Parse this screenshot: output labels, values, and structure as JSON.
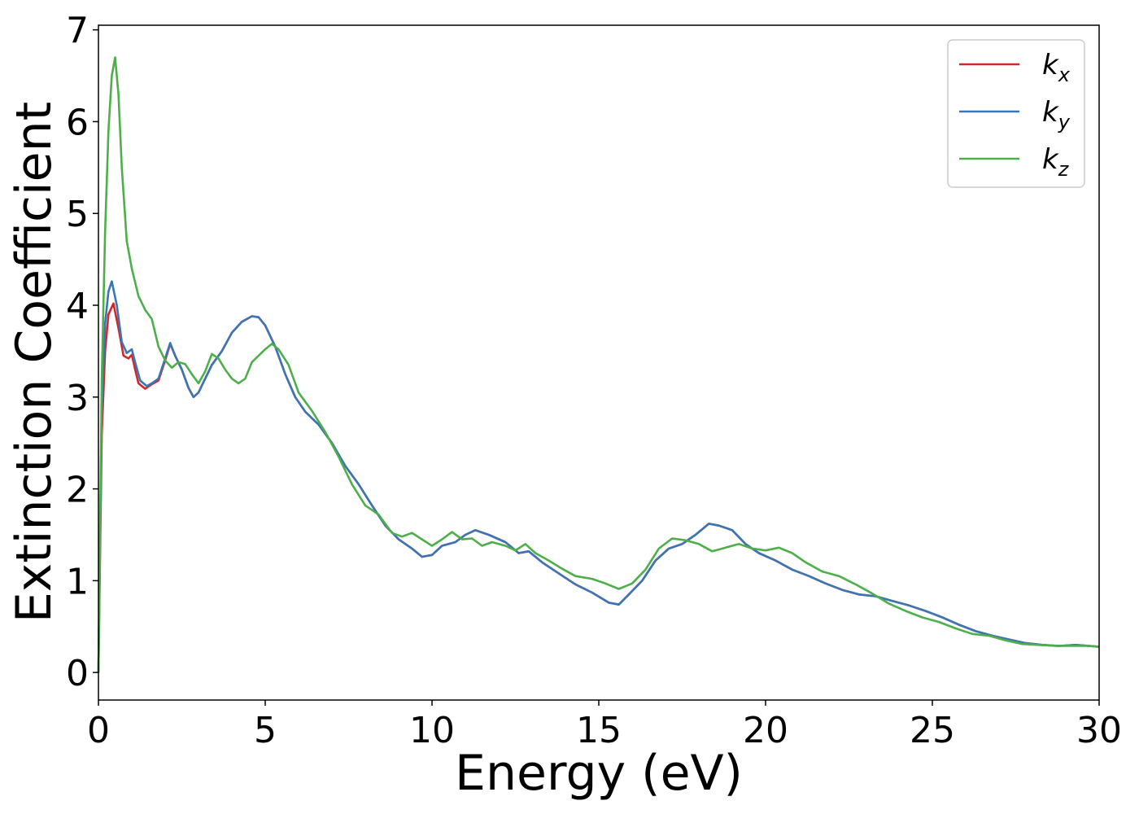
{
  "chart_data": {
    "type": "line",
    "xlabel": "Energy (eV)",
    "ylabel": "Extinction Coefficient",
    "xlim": [
      0,
      30
    ],
    "ylim": [
      -0.3,
      7.05
    ],
    "xticks": [
      0,
      5,
      10,
      15,
      20,
      25,
      30
    ],
    "yticks": [
      0,
      1,
      2,
      3,
      4,
      5,
      6,
      7
    ],
    "grid": false,
    "legend_position": "top-right",
    "series": [
      {
        "name": "kx",
        "legend_main": "k",
        "legend_sub": "x",
        "color": "#d62728",
        "points": [
          [
            0,
            0
          ],
          [
            0.1,
            2.6
          ],
          [
            0.2,
            3.5
          ],
          [
            0.3,
            3.9
          ],
          [
            0.45,
            4.02
          ],
          [
            0.6,
            3.75
          ],
          [
            0.75,
            3.45
          ],
          [
            0.9,
            3.42
          ],
          [
            1.0,
            3.46
          ],
          [
            1.1,
            3.3
          ],
          [
            1.2,
            3.15
          ],
          [
            1.4,
            3.09
          ],
          [
            1.6,
            3.14
          ],
          [
            1.8,
            3.18
          ],
          [
            2.0,
            3.4
          ],
          [
            2.15,
            3.58
          ],
          [
            2.3,
            3.45
          ],
          [
            2.5,
            3.3
          ],
          [
            2.7,
            3.1
          ],
          [
            2.85,
            3.0
          ],
          [
            3.0,
            3.05
          ],
          [
            3.2,
            3.2
          ],
          [
            3.4,
            3.35
          ],
          [
            3.7,
            3.5
          ],
          [
            4.0,
            3.7
          ],
          [
            4.3,
            3.82
          ],
          [
            4.6,
            3.88
          ],
          [
            4.8,
            3.87
          ],
          [
            5.0,
            3.78
          ],
          [
            5.3,
            3.55
          ],
          [
            5.6,
            3.25
          ],
          [
            5.9,
            3.0
          ],
          [
            6.2,
            2.84
          ],
          [
            6.6,
            2.7
          ],
          [
            7.0,
            2.5
          ],
          [
            7.4,
            2.25
          ],
          [
            7.8,
            2.05
          ],
          [
            8.2,
            1.82
          ],
          [
            8.6,
            1.6
          ],
          [
            9.0,
            1.45
          ],
          [
            9.4,
            1.35
          ],
          [
            9.7,
            1.26
          ],
          [
            10.0,
            1.28
          ],
          [
            10.3,
            1.38
          ],
          [
            10.7,
            1.42
          ],
          [
            11.0,
            1.5
          ],
          [
            11.3,
            1.55
          ],
          [
            11.7,
            1.5
          ],
          [
            12.2,
            1.42
          ],
          [
            12.6,
            1.3
          ],
          [
            12.9,
            1.32
          ],
          [
            13.3,
            1.2
          ],
          [
            13.8,
            1.08
          ],
          [
            14.3,
            0.96
          ],
          [
            14.8,
            0.87
          ],
          [
            15.3,
            0.76
          ],
          [
            15.6,
            0.74
          ],
          [
            15.9,
            0.85
          ],
          [
            16.3,
            1.0
          ],
          [
            16.7,
            1.22
          ],
          [
            17.1,
            1.35
          ],
          [
            17.5,
            1.4
          ],
          [
            17.9,
            1.5
          ],
          [
            18.3,
            1.62
          ],
          [
            18.6,
            1.6
          ],
          [
            19.0,
            1.55
          ],
          [
            19.4,
            1.4
          ],
          [
            19.8,
            1.3
          ],
          [
            20.3,
            1.22
          ],
          [
            20.8,
            1.12
          ],
          [
            21.3,
            1.05
          ],
          [
            21.8,
            0.97
          ],
          [
            22.3,
            0.9
          ],
          [
            22.8,
            0.85
          ],
          [
            23.3,
            0.83
          ],
          [
            23.8,
            0.78
          ],
          [
            24.3,
            0.73
          ],
          [
            24.8,
            0.67
          ],
          [
            25.3,
            0.6
          ],
          [
            25.8,
            0.52
          ],
          [
            26.3,
            0.45
          ],
          [
            26.8,
            0.4
          ],
          [
            27.3,
            0.36
          ],
          [
            27.8,
            0.32
          ],
          [
            28.3,
            0.3
          ],
          [
            28.8,
            0.29
          ],
          [
            29.3,
            0.3
          ],
          [
            29.7,
            0.29
          ],
          [
            30.0,
            0.28
          ]
        ]
      },
      {
        "name": "ky",
        "legend_main": "k",
        "legend_sub": "y",
        "color": "#3a76b5",
        "points": [
          [
            0,
            0
          ],
          [
            0.1,
            2.9
          ],
          [
            0.2,
            3.8
          ],
          [
            0.3,
            4.15
          ],
          [
            0.4,
            4.26
          ],
          [
            0.55,
            4.0
          ],
          [
            0.7,
            3.6
          ],
          [
            0.85,
            3.48
          ],
          [
            1.0,
            3.52
          ],
          [
            1.1,
            3.38
          ],
          [
            1.25,
            3.18
          ],
          [
            1.45,
            3.12
          ],
          [
            1.6,
            3.15
          ],
          [
            1.8,
            3.2
          ],
          [
            2.0,
            3.42
          ],
          [
            2.15,
            3.59
          ],
          [
            2.3,
            3.45
          ],
          [
            2.5,
            3.3
          ],
          [
            2.7,
            3.1
          ],
          [
            2.85,
            3.0
          ],
          [
            3.0,
            3.05
          ],
          [
            3.2,
            3.2
          ],
          [
            3.4,
            3.35
          ],
          [
            3.7,
            3.5
          ],
          [
            4.0,
            3.7
          ],
          [
            4.3,
            3.82
          ],
          [
            4.6,
            3.88
          ],
          [
            4.8,
            3.87
          ],
          [
            5.0,
            3.78
          ],
          [
            5.3,
            3.55
          ],
          [
            5.6,
            3.25
          ],
          [
            5.9,
            3.0
          ],
          [
            6.2,
            2.84
          ],
          [
            6.6,
            2.7
          ],
          [
            7.0,
            2.5
          ],
          [
            7.4,
            2.25
          ],
          [
            7.8,
            2.05
          ],
          [
            8.2,
            1.82
          ],
          [
            8.6,
            1.6
          ],
          [
            9.0,
            1.45
          ],
          [
            9.4,
            1.35
          ],
          [
            9.7,
            1.26
          ],
          [
            10.0,
            1.28
          ],
          [
            10.3,
            1.38
          ],
          [
            10.7,
            1.42
          ],
          [
            11.0,
            1.5
          ],
          [
            11.3,
            1.55
          ],
          [
            11.7,
            1.5
          ],
          [
            12.2,
            1.42
          ],
          [
            12.6,
            1.3
          ],
          [
            12.9,
            1.32
          ],
          [
            13.3,
            1.2
          ],
          [
            13.8,
            1.08
          ],
          [
            14.3,
            0.96
          ],
          [
            14.8,
            0.87
          ],
          [
            15.3,
            0.76
          ],
          [
            15.6,
            0.74
          ],
          [
            15.9,
            0.85
          ],
          [
            16.3,
            1.0
          ],
          [
            16.7,
            1.22
          ],
          [
            17.1,
            1.35
          ],
          [
            17.5,
            1.4
          ],
          [
            17.9,
            1.5
          ],
          [
            18.3,
            1.62
          ],
          [
            18.6,
            1.6
          ],
          [
            19.0,
            1.55
          ],
          [
            19.4,
            1.4
          ],
          [
            19.8,
            1.3
          ],
          [
            20.3,
            1.22
          ],
          [
            20.8,
            1.12
          ],
          [
            21.3,
            1.05
          ],
          [
            21.8,
            0.97
          ],
          [
            22.3,
            0.9
          ],
          [
            22.8,
            0.85
          ],
          [
            23.3,
            0.83
          ],
          [
            23.8,
            0.78
          ],
          [
            24.3,
            0.73
          ],
          [
            24.8,
            0.67
          ],
          [
            25.3,
            0.6
          ],
          [
            25.8,
            0.52
          ],
          [
            26.3,
            0.45
          ],
          [
            26.8,
            0.4
          ],
          [
            27.3,
            0.36
          ],
          [
            27.8,
            0.32
          ],
          [
            28.3,
            0.3
          ],
          [
            28.8,
            0.29
          ],
          [
            29.3,
            0.3
          ],
          [
            29.7,
            0.29
          ],
          [
            30.0,
            0.28
          ]
        ]
      },
      {
        "name": "kz",
        "legend_main": "k",
        "legend_sub": "z",
        "color": "#4daf4a",
        "points": [
          [
            0,
            0
          ],
          [
            0.1,
            3.2
          ],
          [
            0.2,
            4.8
          ],
          [
            0.3,
            5.9
          ],
          [
            0.4,
            6.5
          ],
          [
            0.5,
            6.7
          ],
          [
            0.6,
            6.3
          ],
          [
            0.7,
            5.5
          ],
          [
            0.85,
            4.7
          ],
          [
            1.0,
            4.4
          ],
          [
            1.2,
            4.1
          ],
          [
            1.4,
            3.95
          ],
          [
            1.6,
            3.85
          ],
          [
            1.8,
            3.55
          ],
          [
            2.0,
            3.4
          ],
          [
            2.2,
            3.32
          ],
          [
            2.4,
            3.38
          ],
          [
            2.6,
            3.36
          ],
          [
            2.8,
            3.25
          ],
          [
            3.0,
            3.15
          ],
          [
            3.2,
            3.28
          ],
          [
            3.4,
            3.47
          ],
          [
            3.6,
            3.42
          ],
          [
            3.8,
            3.3
          ],
          [
            4.0,
            3.2
          ],
          [
            4.2,
            3.15
          ],
          [
            4.4,
            3.2
          ],
          [
            4.6,
            3.38
          ],
          [
            4.8,
            3.45
          ],
          [
            5.0,
            3.52
          ],
          [
            5.2,
            3.58
          ],
          [
            5.4,
            3.52
          ],
          [
            5.7,
            3.35
          ],
          [
            6.0,
            3.05
          ],
          [
            6.4,
            2.85
          ],
          [
            6.8,
            2.62
          ],
          [
            7.2,
            2.35
          ],
          [
            7.6,
            2.05
          ],
          [
            8.0,
            1.82
          ],
          [
            8.4,
            1.72
          ],
          [
            8.8,
            1.52
          ],
          [
            9.1,
            1.48
          ],
          [
            9.4,
            1.52
          ],
          [
            9.7,
            1.45
          ],
          [
            10.0,
            1.38
          ],
          [
            10.3,
            1.45
          ],
          [
            10.6,
            1.53
          ],
          [
            10.9,
            1.45
          ],
          [
            11.2,
            1.46
          ],
          [
            11.5,
            1.38
          ],
          [
            11.8,
            1.42
          ],
          [
            12.2,
            1.38
          ],
          [
            12.5,
            1.33
          ],
          [
            12.8,
            1.4
          ],
          [
            13.1,
            1.3
          ],
          [
            13.5,
            1.22
          ],
          [
            13.9,
            1.13
          ],
          [
            14.3,
            1.05
          ],
          [
            14.8,
            1.02
          ],
          [
            15.2,
            0.97
          ],
          [
            15.6,
            0.91
          ],
          [
            16.0,
            0.97
          ],
          [
            16.4,
            1.12
          ],
          [
            16.8,
            1.35
          ],
          [
            17.2,
            1.46
          ],
          [
            17.6,
            1.44
          ],
          [
            18.0,
            1.4
          ],
          [
            18.4,
            1.32
          ],
          [
            18.8,
            1.36
          ],
          [
            19.2,
            1.4
          ],
          [
            19.6,
            1.35
          ],
          [
            20.0,
            1.33
          ],
          [
            20.4,
            1.36
          ],
          [
            20.8,
            1.3
          ],
          [
            21.2,
            1.2
          ],
          [
            21.7,
            1.1
          ],
          [
            22.2,
            1.05
          ],
          [
            22.7,
            0.96
          ],
          [
            23.2,
            0.86
          ],
          [
            23.7,
            0.75
          ],
          [
            24.2,
            0.67
          ],
          [
            24.7,
            0.6
          ],
          [
            25.2,
            0.55
          ],
          [
            25.7,
            0.48
          ],
          [
            26.2,
            0.42
          ],
          [
            26.7,
            0.4
          ],
          [
            27.2,
            0.35
          ],
          [
            27.7,
            0.31
          ],
          [
            28.2,
            0.3
          ],
          [
            28.7,
            0.29
          ],
          [
            29.2,
            0.29
          ],
          [
            29.7,
            0.29
          ],
          [
            30.0,
            0.28
          ]
        ]
      }
    ]
  }
}
